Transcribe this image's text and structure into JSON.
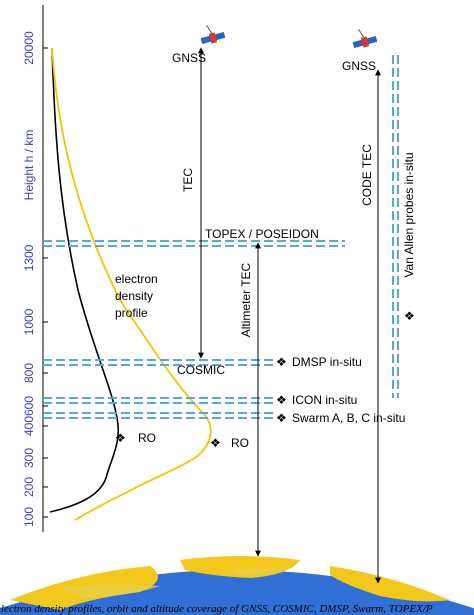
{
  "y_axis": {
    "title": "Height  h / km",
    "ticks": [
      "20000",
      "1300",
      "1000",
      "800",
      "600",
      "400",
      "300",
      "200",
      "100"
    ]
  },
  "labels": {
    "gnss_left": "GNSS",
    "gnss_right": "GNSS",
    "tec": "TEC",
    "code_tec": "CODE TEC",
    "topex": "TOPEX / POSEIDON",
    "electron_profile_1": "electron",
    "electron_profile_2": "density",
    "electron_profile_3": "profile",
    "altimeter_tec": "Altimeter TEC",
    "van_allen": "Van Allen probes in-situ",
    "dmsp": "DMSP in-situ",
    "cosmic": "COSMIC",
    "icon": "ICON in-situ",
    "swarm": "Swarm A, B, C in-situ",
    "ro_left": "RO",
    "ro_right": "RO"
  },
  "markers": {
    "diamond": "❖"
  },
  "caption": "electron density profiles, orbit and altitude coverage of GNSS, COSMIC, DMSP, Swarm, TOPEX/P"
}
